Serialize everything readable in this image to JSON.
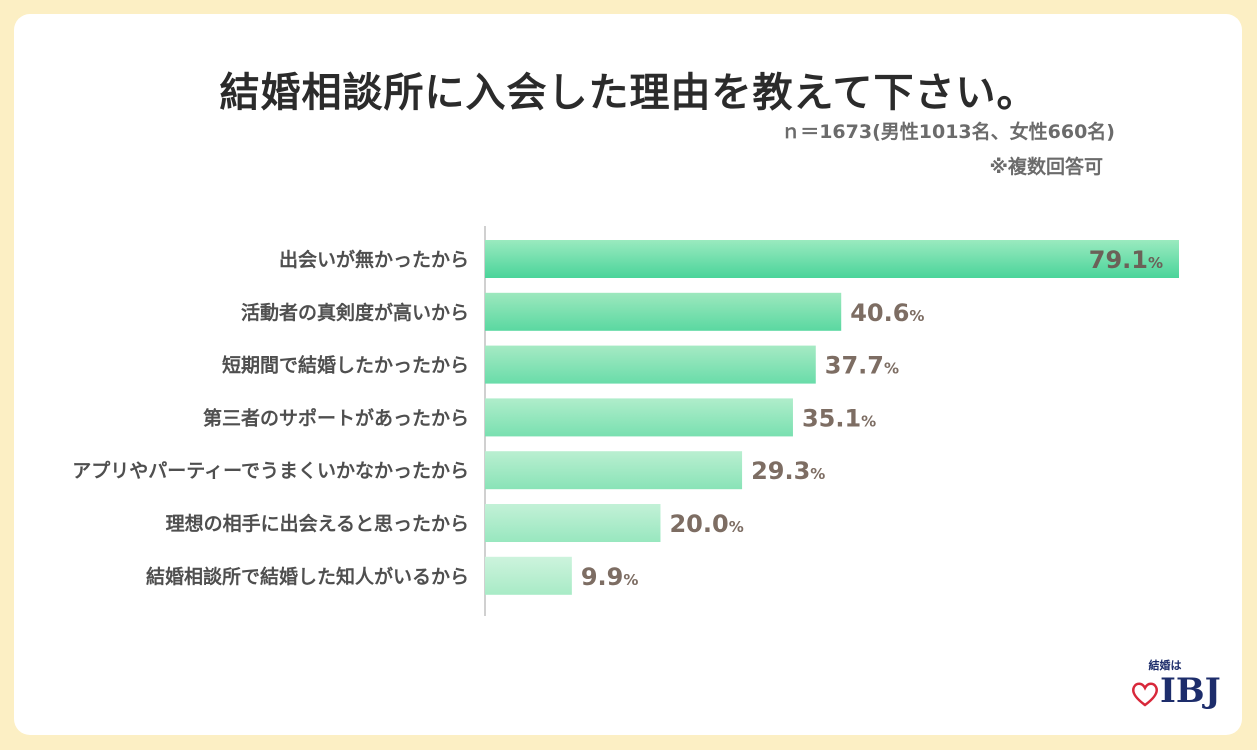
{
  "title": "結婚相談所に入会した理由を教えて下さい。",
  "sample_note": "ｎ＝1673(男性1013名、女性660名)",
  "multi_note": "※複数回答可",
  "logo": {
    "small": "結婚は",
    "big": "IBJ",
    "color": "#1d2d6b",
    "heart_color": "#d8283a"
  },
  "colors": {
    "bar_top": "#4ad49a",
    "bar_bottom": "#cdf3dd",
    "value_text": "#7d6d63",
    "value_text_inside": "#6b6158",
    "category_text": "#4f4f4f",
    "axis": "#d0d0d0"
  },
  "chart_data": {
    "type": "bar",
    "orientation": "horizontal",
    "unit": "%",
    "xlim": [
      0,
      79.1
    ],
    "categories": [
      "出会いが無かったから",
      "活動者の真剣度が高いから",
      "短期間で結婚したかったから",
      "第三者のサポートがあったから",
      "アプリやパーティーでうまくいかなかったから",
      "理想の相手に出会えると思ったから",
      "結婚相談所で結婚した知人がいるから"
    ],
    "values": [
      79.1,
      40.6,
      37.7,
      35.1,
      29.3,
      20.0,
      9.9
    ],
    "value_labels": [
      "79.1",
      "40.6",
      "37.7",
      "35.1",
      "29.3",
      "20.0",
      "9.9"
    ]
  }
}
